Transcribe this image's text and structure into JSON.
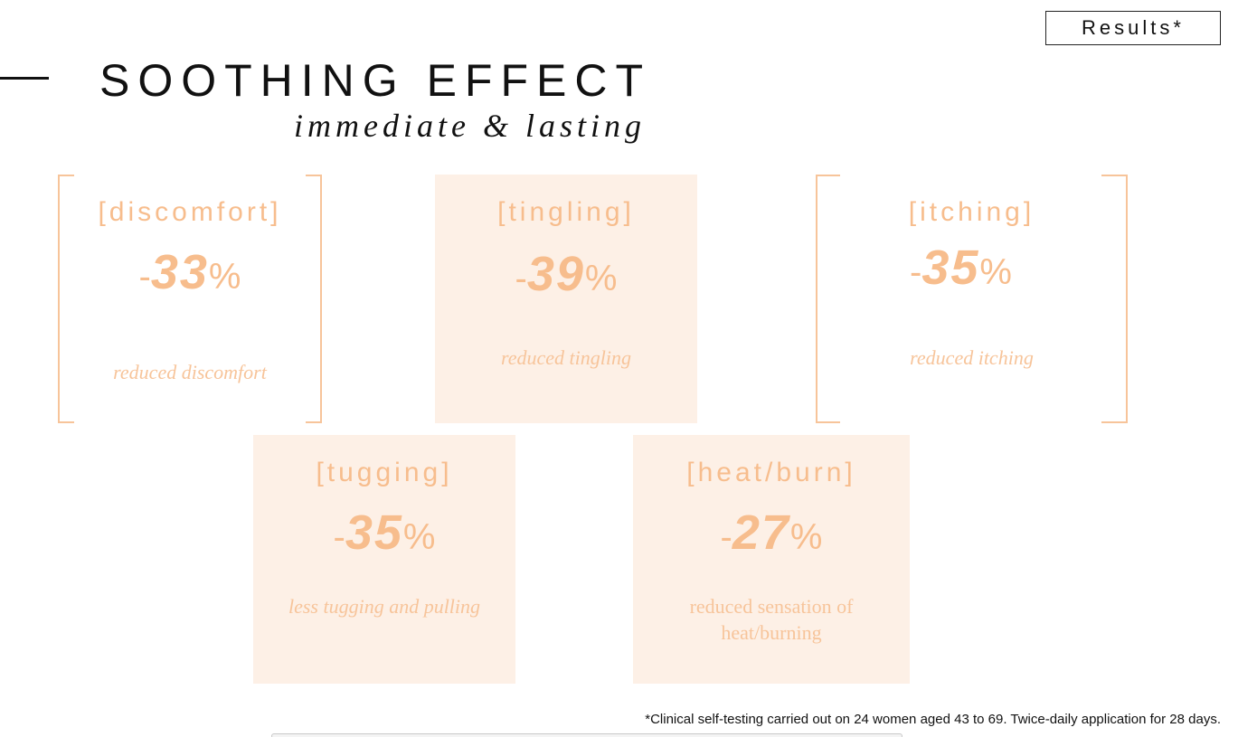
{
  "header": {
    "results_label": "Results*",
    "title": "SOOTHING EFFECT",
    "subtitle": "immediate & lasting"
  },
  "colors": {
    "accent": "#f7bd8d",
    "card_fill": "#fdf0e6",
    "text": "#111111"
  },
  "cards": [
    {
      "label": "[discomfort]",
      "sign": "-",
      "value": "33",
      "unit": "%",
      "description": "reduced discomfort",
      "style": "bracketed"
    },
    {
      "label": "[tingling]",
      "sign": "-",
      "value": "39",
      "unit": "%",
      "description": "reduced tingling",
      "style": "filled"
    },
    {
      "label": "[itching]",
      "sign": "-",
      "value": "35",
      "unit": "%",
      "description": "reduced itching",
      "style": "bracketed"
    },
    {
      "label": "[tugging]",
      "sign": "-",
      "value": "35",
      "unit": "%",
      "description": "less tugging and pulling",
      "style": "filled"
    },
    {
      "label": "[heat/burn]",
      "sign": "-",
      "value": "27",
      "unit": "%",
      "description_line1": "reduced sensation of",
      "description_line2": "heat/burning",
      "style": "filled"
    }
  ],
  "footnote": "*Clinical self-testing carried out on 24 women aged 43 to 69. Twice-daily application for 28 days."
}
